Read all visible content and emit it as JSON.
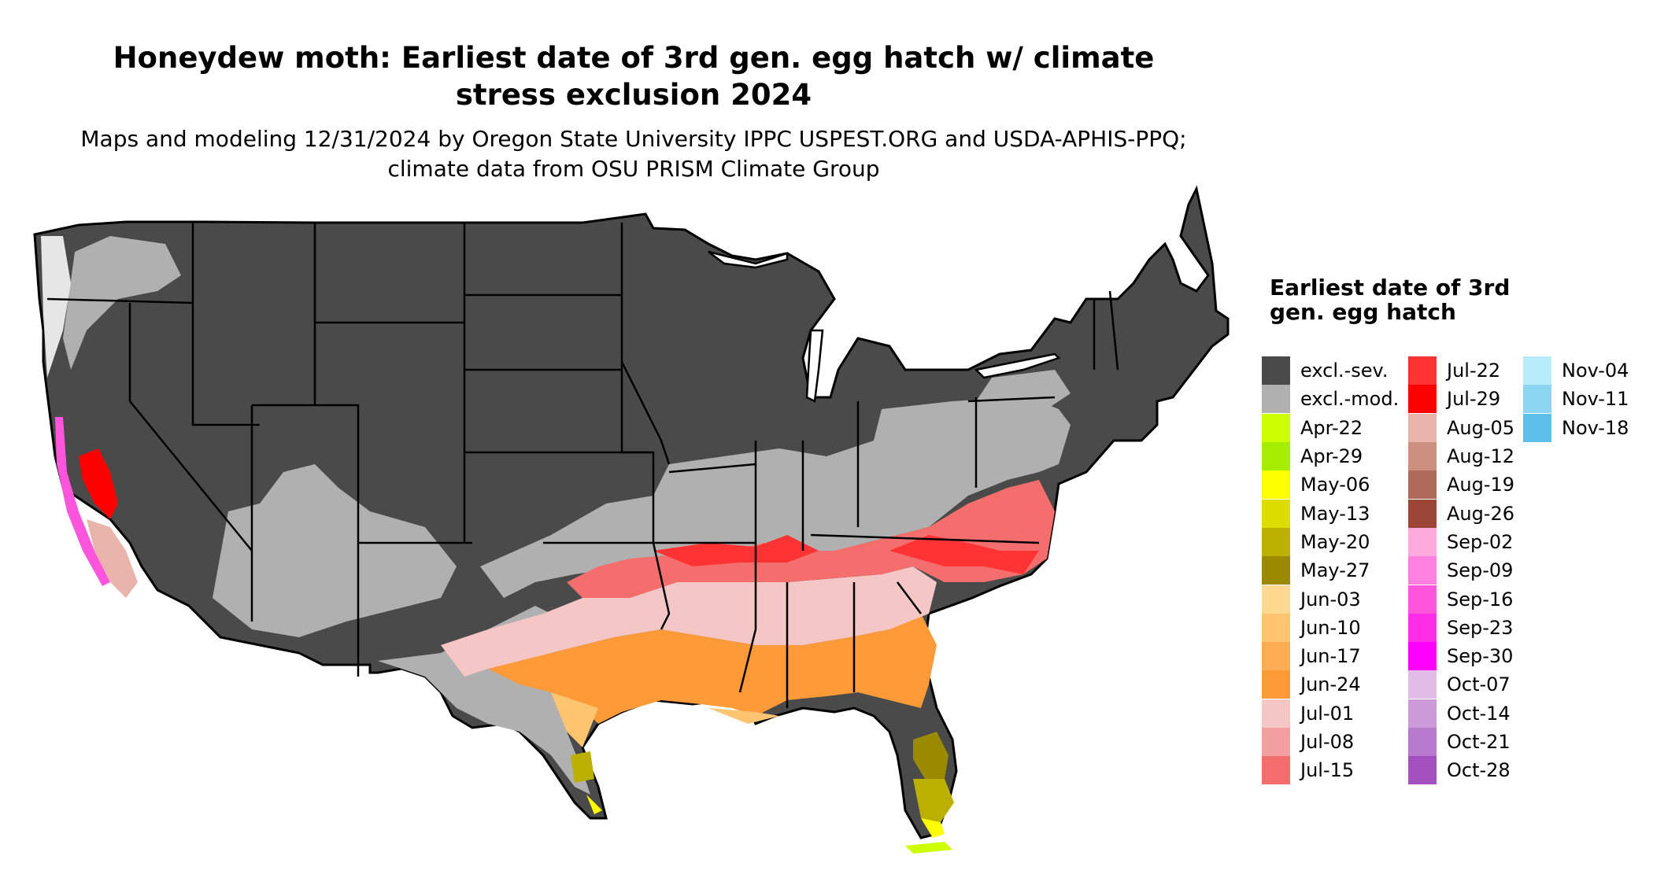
{
  "title": "Honeydew moth: Earliest date of 3rd gen. egg hatch w/ climate stress exclusion 2024",
  "subtitle": "Maps and modeling 12/31/2024 by Oregon State University IPPC USPEST.ORG and USDA-APHIS-PPQ; climate data from OSU PRISM Climate Group",
  "legend": {
    "title": "Earliest date of 3rd gen. egg hatch",
    "columns": [
      [
        {
          "label": "excl.-sev.",
          "color": "#4a4a4a"
        },
        {
          "label": "excl.-mod.",
          "color": "#b0b0b0"
        },
        {
          "label": "Apr-22",
          "color": "#ccff00"
        },
        {
          "label": "Apr-29",
          "color": "#a6ee00"
        },
        {
          "label": "May-06",
          "color": "#ffff00"
        },
        {
          "label": "May-13",
          "color": "#dddd00"
        },
        {
          "label": "May-20",
          "color": "#bbb000"
        },
        {
          "label": "May-27",
          "color": "#9a8a00"
        },
        {
          "label": "Jun-03",
          "color": "#ffd990"
        },
        {
          "label": "Jun-10",
          "color": "#ffc470"
        },
        {
          "label": "Jun-17",
          "color": "#ffad55"
        },
        {
          "label": "Jun-24",
          "color": "#ff9a38"
        },
        {
          "label": "Jul-01",
          "color": "#f5c6c6"
        },
        {
          "label": "Jul-08",
          "color": "#f4a0a0"
        },
        {
          "label": "Jul-15",
          "color": "#f56e6e"
        }
      ],
      [
        {
          "label": "Jul-22",
          "color": "#ff3333"
        },
        {
          "label": "Jul-29",
          "color": "#ff0000"
        },
        {
          "label": "Aug-05",
          "color": "#e8b4ac"
        },
        {
          "label": "Aug-12",
          "color": "#cc9080"
        },
        {
          "label": "Aug-19",
          "color": "#b06a5a"
        },
        {
          "label": "Aug-26",
          "color": "#9a4535"
        },
        {
          "label": "Sep-02",
          "color": "#ffaadd"
        },
        {
          "label": "Sep-09",
          "color": "#ff80dd"
        },
        {
          "label": "Sep-16",
          "color": "#ff55dd"
        },
        {
          "label": "Sep-23",
          "color": "#ff2ee6"
        },
        {
          "label": "Sep-30",
          "color": "#ff00ff"
        },
        {
          "label": "Oct-07",
          "color": "#e0bce6"
        },
        {
          "label": "Oct-14",
          "color": "#cc9ad9"
        },
        {
          "label": "Oct-21",
          "color": "#b87acc"
        },
        {
          "label": "Oct-28",
          "color": "#a450bf"
        }
      ],
      [
        {
          "label": "Nov-04",
          "color": "#b8ecfa"
        },
        {
          "label": "Nov-11",
          "color": "#8cd6f2"
        },
        {
          "label": "Nov-18",
          "color": "#5cc0e8"
        }
      ]
    ]
  }
}
